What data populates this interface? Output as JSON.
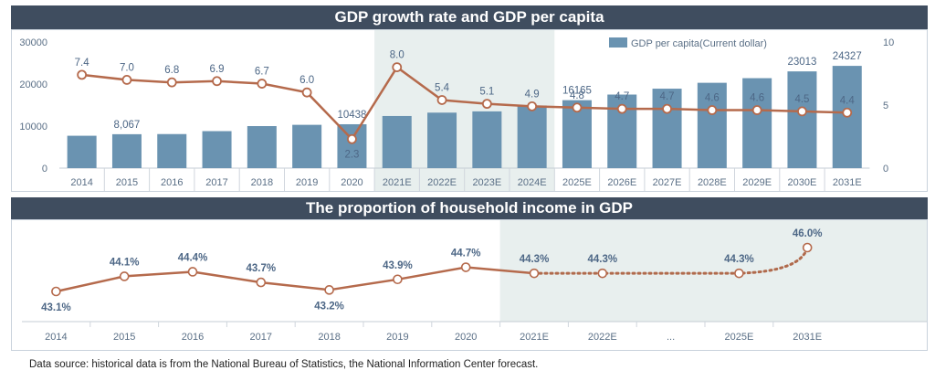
{
  "colors": {
    "header_bg": "#3f4d5f",
    "bar": "#6a93b1",
    "line": "#b56a4c",
    "dotted": "#b06a4c",
    "highlight": "#e8efee",
    "label": "#5a6f86",
    "value_label": "#4d6786"
  },
  "chart_data": [
    {
      "type": "bar+line",
      "title": "GDP growth rate and GDP per capita",
      "categories": [
        "2014",
        "2015",
        "2016",
        "2017",
        "2018",
        "2019",
        "2020",
        "2021E",
        "2022E",
        "2023E",
        "2024E",
        "2025E",
        "2026E",
        "2027E",
        "2028E",
        "2029E",
        "2030E",
        "2031E"
      ],
      "left_axis": {
        "ticks": [
          "0",
          "10000",
          "20000",
          "30000"
        ],
        "range": [
          0,
          30000
        ]
      },
      "right_axis": {
        "ticks": [
          "0",
          "5",
          "10"
        ],
        "range": [
          0,
          10
        ]
      },
      "highlight_categories": [
        "2021E",
        "2022E",
        "2023E",
        "2024E"
      ],
      "bar_series": {
        "name": "GDP per capita(Current dollar)",
        "values": [
          7700,
          8067,
          8100,
          8800,
          10000,
          10300,
          10438,
          12400,
          13200,
          13500,
          14900,
          16165,
          17500,
          18900,
          20300,
          21400,
          23013,
          24327
        ],
        "labels": [
          "",
          "8,067",
          "",
          "",
          "",
          "",
          "10438",
          "",
          "",
          "",
          "",
          "16165",
          "",
          "",
          "",
          "",
          "23013",
          "24327"
        ]
      },
      "line_series": {
        "values": [
          7.4,
          7.0,
          6.8,
          6.9,
          6.7,
          6.0,
          2.3,
          8.0,
          5.4,
          5.1,
          4.9,
          4.8,
          4.7,
          4.7,
          4.6,
          4.6,
          4.5,
          4.4
        ],
        "labels": [
          "7.4",
          "7.0",
          "6.8",
          "6.9",
          "6.7",
          "6.0",
          "2.3",
          "8.0",
          "5.4",
          "5.1",
          "4.9",
          "4.8",
          "4.7",
          "4.7",
          "4.6",
          "4.6",
          "4.5",
          "4.4"
        ]
      },
      "legend": "top-right"
    },
    {
      "type": "line",
      "title": "The proportion of household income in GDP",
      "categories": [
        "2014",
        "2015",
        "2016",
        "2017",
        "2018",
        "2019",
        "2020",
        "2021E",
        "2022E",
        "...",
        "2025E",
        "2031E"
      ],
      "shaded_from": "2021E",
      "points": [
        {
          "category": "2014",
          "value": 43.1,
          "label": "43.1%",
          "style": "solid"
        },
        {
          "category": "2015",
          "value": 44.1,
          "label": "44.1%",
          "style": "solid"
        },
        {
          "category": "2016",
          "value": 44.4,
          "label": "44.4%",
          "style": "solid"
        },
        {
          "category": "2017",
          "value": 43.7,
          "label": "43.7%",
          "style": "solid"
        },
        {
          "category": "2018",
          "value": 43.2,
          "label": "43.2%",
          "style": "solid"
        },
        {
          "category": "2019",
          "value": 43.9,
          "label": "43.9%",
          "style": "solid"
        },
        {
          "category": "2020",
          "value": 44.7,
          "label": "44.7%",
          "style": "solid"
        },
        {
          "category": "2021E",
          "value": 44.3,
          "label": "44.3%",
          "style": "dotted"
        },
        {
          "category": "2022E",
          "value": 44.3,
          "label": "44.3%",
          "style": "dotted"
        },
        {
          "category": "2025E",
          "value": 44.3,
          "label": "44.3%",
          "style": "dotted"
        },
        {
          "category": "2031E",
          "value": 46.0,
          "label": "46.0%",
          "style": "dotted"
        }
      ]
    }
  ],
  "source_note": "Data source: historical data is from the National Bureau of Statistics, the National Information Center forecast."
}
